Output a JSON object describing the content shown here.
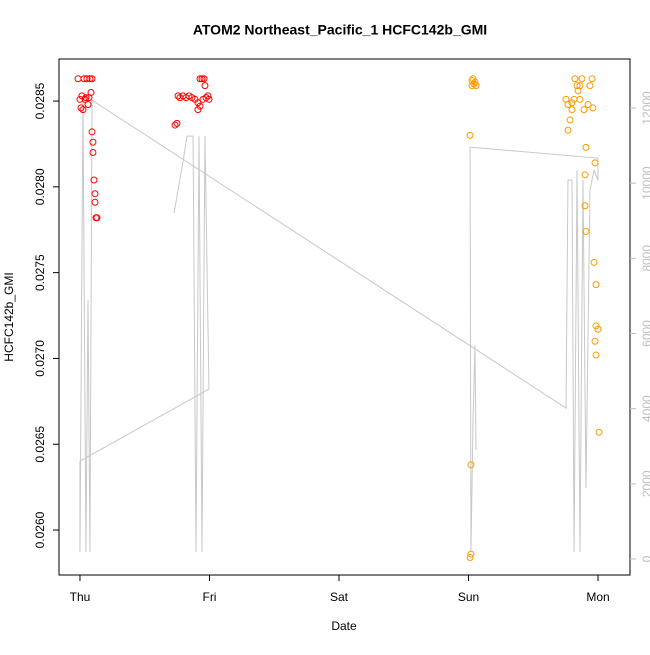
{
  "chart_data": {
    "type": "scatter",
    "title": "ATOM2 Northeast_Pacific_1 HCFC142b_GMI",
    "x_label": "Date",
    "y_label": "HCFC142b_GMI",
    "xlim": [
      -0.162,
      4.247
    ],
    "xticks": [
      {
        "value": 0,
        "label": "Thu"
      },
      {
        "value": 1,
        "label": "Fri"
      },
      {
        "value": 2,
        "label": "Sat"
      },
      {
        "value": 3,
        "label": "Sun"
      },
      {
        "value": 4,
        "label": "Mon"
      }
    ],
    "ylim": [
      0.025738,
      0.028745
    ],
    "yticks": [
      {
        "value": 0.026,
        "label": "0.0260"
      },
      {
        "value": 0.0265,
        "label": "0.0265"
      },
      {
        "value": 0.027,
        "label": "0.0270"
      },
      {
        "value": 0.0275,
        "label": "0.0275"
      },
      {
        "value": 0.028,
        "label": "0.0280"
      },
      {
        "value": 0.0285,
        "label": "0.0285"
      }
    ],
    "y2lim": [
      -426,
      13303
    ],
    "y2ticks": [
      0,
      2000,
      4000,
      6000,
      8000,
      10000,
      12000
    ],
    "y2_color": "#bdbdbd",
    "series": [
      {
        "color": "#ff0000",
        "x": [
          -0.015,
          0,
          0.008,
          0.015,
          0.031,
          0.039,
          0.054,
          0.062,
          0.077,
          0.085,
          0.023,
          0.046,
          0.069,
          0.093,
          0.1,
          0.1,
          0.108,
          0.116,
          0.116,
          0.124,
          0.131,
          0.093,
          0.734,
          0.749,
          0.757,
          0.772,
          0.795,
          0.819,
          0.842,
          0.865,
          0.888,
          0.911,
          0.927,
          0.942,
          0.958,
          0.911,
          0.927,
          0.95,
          0.973,
          0.988,
          0.996,
          0.965
        ],
        "values": [
          0.02863,
          0.02851,
          0.02846,
          0.02853,
          0.02863,
          0.02851,
          0.02863,
          0.02848,
          0.02863,
          0.02855,
          0.02845,
          0.02852,
          0.02852,
          0.02832,
          0.02826,
          0.0282,
          0.02804,
          0.02796,
          0.02791,
          0.02782,
          0.02782,
          0.02863,
          0.02836,
          0.02837,
          0.02853,
          0.02852,
          0.02853,
          0.02852,
          0.02853,
          0.02852,
          0.02851,
          0.02849,
          0.02863,
          0.02863,
          0.02863,
          0.02845,
          0.02847,
          0.02851,
          0.02852,
          0.02853,
          0.02851,
          0.02859
        ]
      },
      {
        "color": "#ff9900",
        "x": [
          3.012,
          3.019,
          3.012,
          3.019,
          3.027,
          3.035,
          3.042,
          3.058,
          3.05,
          3.027,
          3.753,
          3.768,
          3.784,
          3.799,
          3.822,
          3.838,
          3.846,
          3.861,
          3.876,
          3.892,
          3.907,
          3.9,
          3.9,
          3.907,
          3.923,
          3.938,
          3.954,
          3.961,
          3.969,
          3.977,
          3.985,
          3.985,
          3.977,
          3.985,
          4.0,
          4.008,
          3.861,
          3.815,
          3.768,
          3.799
        ],
        "values": [
          0.0283,
          0.02586,
          0.02584,
          0.02638,
          0.02862,
          0.02863,
          0.0286,
          0.02859,
          0.02861,
          0.02859,
          0.02851,
          0.02833,
          0.02839,
          0.02849,
          0.02863,
          0.02859,
          0.02856,
          0.02851,
          0.02863,
          0.02845,
          0.02823,
          0.02807,
          0.02789,
          0.02774,
          0.02848,
          0.02859,
          0.02863,
          0.02846,
          0.02756,
          0.02814,
          0.02743,
          0.02719,
          0.0271,
          0.02702,
          0.02717,
          0.02657,
          0.02859,
          0.02851,
          0.02848,
          0.02845
        ]
      },
      {
        "color": "#c8c8c8",
        "axis": "y2",
        "type": "line",
        "x": [
          0.726,
          0.757,
          0.795,
          0.826,
          0.873,
          0.896,
          0.919,
          0.942,
          0.965,
          0.996,
          0,
          0,
          0.023,
          0.046,
          0.062,
          0.077,
          0.093,
          3.753,
          3.768,
          3.799,
          3.815,
          3.838,
          3.861,
          3.884,
          3.907,
          3.938,
          3.969,
          4.0,
          4.0,
          3.012,
          3.019,
          3.035,
          3.05,
          3.058
        ],
        "values": [
          9202,
          9814,
          10559,
          11250,
          11250,
          186,
          11250,
          186,
          11250,
          4521,
          2606,
          186,
          12207,
          186,
          6888,
          186,
          12207,
          4016,
          10080,
          10080,
          186,
          10346,
          186,
          10080,
          1888,
          9814,
          10346,
          10080,
          10665,
          10957,
          186,
          3697,
          5691,
          2899
        ]
      }
    ]
  }
}
